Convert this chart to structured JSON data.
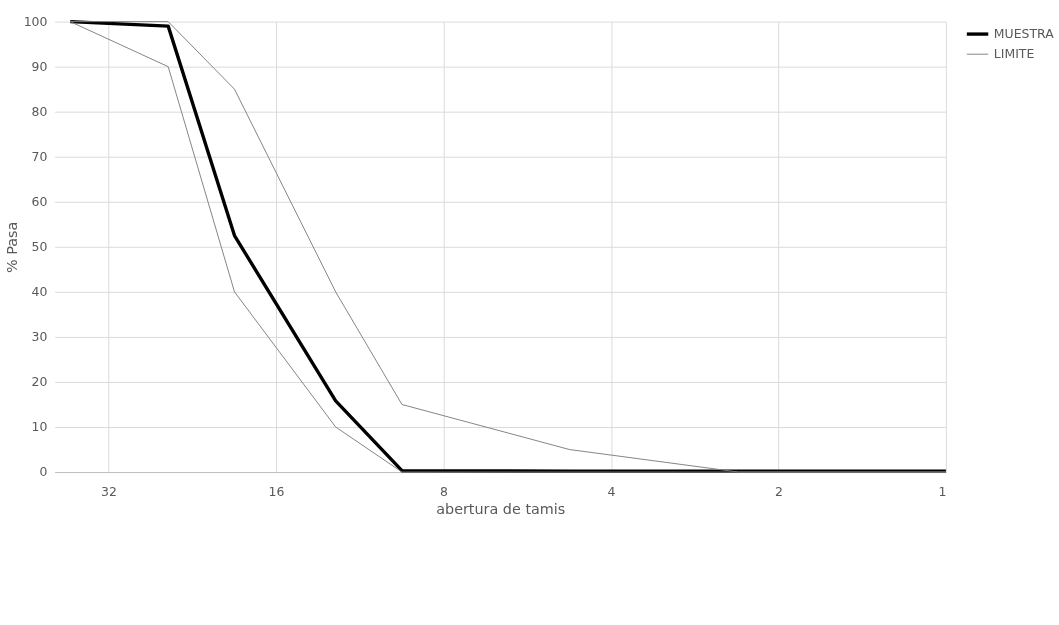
{
  "chart_data": {
    "type": "line",
    "xlabel": "abertura de tamis",
    "ylabel": "% Pasa",
    "x": [
      37.5,
      25,
      19,
      12.5,
      9.5,
      4.75,
      2.36,
      1
    ],
    "series": [
      {
        "name": "MUESTRA",
        "color": "#000000",
        "values": [
          100,
          99,
          52.5,
          15.8,
          0.3,
          0.2,
          0.2,
          0.2
        ]
      },
      {
        "name": "LIMITE",
        "color": "#808080",
        "values": [
          100,
          90,
          40,
          10,
          0,
          0,
          0,
          0
        ]
      },
      {
        "color": "#808080",
        "values": [
          100,
          100,
          85,
          40,
          15,
          5,
          0,
          0
        ]
      }
    ],
    "log": "x",
    "xlim": [
      40,
      1
    ],
    "xticks": [
      32,
      16,
      8,
      4,
      2,
      1
    ],
    "ylim": [
      0,
      100
    ],
    "yticks": [
      0,
      10,
      20,
      30,
      40,
      50,
      60,
      70,
      80,
      90,
      100
    ],
    "grid": true,
    "legend": "right",
    "marker": "none",
    "line_style": "solid"
  }
}
